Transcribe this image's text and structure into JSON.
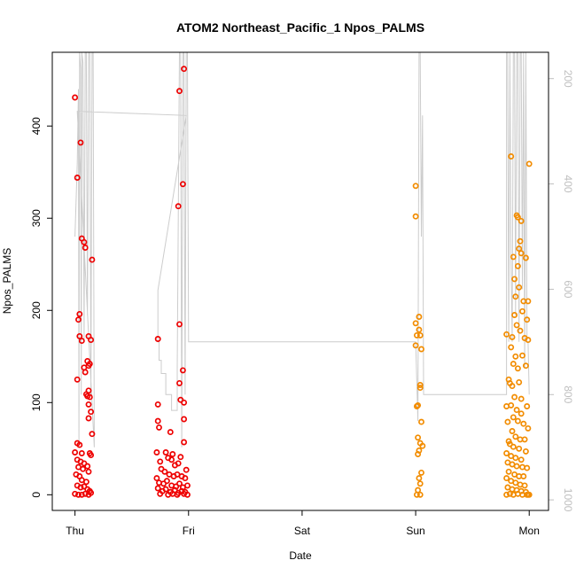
{
  "chart_data": {
    "type": "scatter",
    "title": "ATOM2 Northeast_Pacific_1 Npos_PALMS",
    "xlabel": "Date",
    "ylabel": "Npos_PALMS",
    "x_ticks": [
      "Thu",
      "Fri",
      "Sat",
      "Sun",
      "Mon"
    ],
    "x_range": [
      -0.2,
      4.17
    ],
    "ylim": [
      -17,
      480
    ],
    "y_ticks": [
      0,
      100,
      200,
      300,
      400
    ],
    "y2_ticks": [
      200,
      400,
      600,
      800,
      1000
    ],
    "y2_range": [
      150,
      1020
    ],
    "grid": false,
    "colors": {
      "red": "#ee0000",
      "orange": "#f28c00",
      "altitude": "#cccccc"
    },
    "series": [
      {
        "color": "red",
        "points": [
          [
            0.0,
            431
          ],
          [
            0.02,
            344
          ],
          [
            0.05,
            382
          ],
          [
            0.06,
            278
          ],
          [
            0.08,
            274
          ],
          [
            0.09,
            268
          ],
          [
            0.15,
            255
          ],
          [
            0.04,
            196
          ],
          [
            0.03,
            190
          ],
          [
            0.04,
            172
          ],
          [
            0.06,
            167
          ],
          [
            0.12,
            172
          ],
          [
            0.14,
            168
          ],
          [
            0.08,
            138
          ],
          [
            0.09,
            133
          ],
          [
            0.11,
            145
          ],
          [
            0.13,
            142
          ],
          [
            0.12,
            140
          ],
          [
            0.02,
            125
          ],
          [
            0.1,
            109
          ],
          [
            0.11,
            107
          ],
          [
            0.12,
            113
          ],
          [
            0.13,
            106
          ],
          [
            0.12,
            98
          ],
          [
            0.14,
            90
          ],
          [
            0.12,
            83
          ],
          [
            0.15,
            66
          ],
          [
            0.02,
            56
          ],
          [
            0.04,
            54
          ],
          [
            0.0,
            46
          ],
          [
            0.06,
            45
          ],
          [
            0.13,
            45
          ],
          [
            0.14,
            43
          ],
          [
            0.02,
            38
          ],
          [
            0.05,
            36
          ],
          [
            0.08,
            34
          ],
          [
            0.03,
            30
          ],
          [
            0.07,
            28
          ],
          [
            0.11,
            31
          ],
          [
            0.12,
            25
          ],
          [
            0.01,
            22
          ],
          [
            0.04,
            20
          ],
          [
            0.06,
            16
          ],
          [
            0.1,
            14
          ],
          [
            0.02,
            10
          ],
          [
            0.05,
            8
          ],
          [
            0.08,
            9
          ],
          [
            0.11,
            6
          ],
          [
            0.13,
            4
          ],
          [
            0.0,
            1
          ],
          [
            0.03,
            0
          ],
          [
            0.06,
            0
          ],
          [
            0.09,
            1
          ],
          [
            0.12,
            0
          ],
          [
            0.14,
            2
          ],
          [
            0.96,
            462
          ],
          [
            0.92,
            438
          ],
          [
            0.95,
            337
          ],
          [
            0.91,
            313
          ],
          [
            0.92,
            185
          ],
          [
            0.73,
            169
          ],
          [
            0.95,
            135
          ],
          [
            0.92,
            121
          ],
          [
            0.93,
            103
          ],
          [
            0.73,
            98
          ],
          [
            0.96,
            100
          ],
          [
            0.96,
            82
          ],
          [
            0.73,
            80
          ],
          [
            0.74,
            73
          ],
          [
            0.84,
            68
          ],
          [
            0.96,
            57
          ],
          [
            0.72,
            46
          ],
          [
            0.8,
            46
          ],
          [
            0.86,
            44
          ],
          [
            0.93,
            41
          ],
          [
            0.75,
            36
          ],
          [
            0.82,
            40
          ],
          [
            0.85,
            38
          ],
          [
            0.88,
            32
          ],
          [
            0.91,
            34
          ],
          [
            0.98,
            27
          ],
          [
            0.76,
            28
          ],
          [
            0.79,
            25
          ],
          [
            0.83,
            22
          ],
          [
            0.87,
            20
          ],
          [
            0.9,
            22
          ],
          [
            0.94,
            20
          ],
          [
            0.97,
            18
          ],
          [
            0.72,
            18
          ],
          [
            0.74,
            13
          ],
          [
            0.78,
            12
          ],
          [
            0.81,
            15
          ],
          [
            0.85,
            10
          ],
          [
            0.89,
            9
          ],
          [
            0.92,
            12
          ],
          [
            0.95,
            8
          ],
          [
            0.99,
            10
          ],
          [
            0.73,
            7
          ],
          [
            0.77,
            4
          ],
          [
            0.8,
            6
          ],
          [
            0.84,
            3
          ],
          [
            0.88,
            5
          ],
          [
            0.91,
            2
          ],
          [
            0.94,
            4
          ],
          [
            0.97,
            3
          ],
          [
            0.75,
            1
          ],
          [
            0.82,
            0
          ],
          [
            0.86,
            1
          ],
          [
            0.9,
            0
          ],
          [
            0.96,
            1
          ],
          [
            0.99,
            0
          ]
        ]
      },
      {
        "color": "orange",
        "points": [
          [
            3.0,
            335
          ],
          [
            3.0,
            302
          ],
          [
            3.03,
            193
          ],
          [
            3.0,
            186
          ],
          [
            3.03,
            179
          ],
          [
            3.01,
            173
          ],
          [
            3.04,
            173
          ],
          [
            3.0,
            162
          ],
          [
            3.05,
            158
          ],
          [
            3.04,
            119
          ],
          [
            3.04,
            116
          ],
          [
            3.02,
            97
          ],
          [
            3.01,
            96
          ],
          [
            3.05,
            79
          ],
          [
            3.02,
            62
          ],
          [
            3.04,
            56
          ],
          [
            3.06,
            53
          ],
          [
            3.03,
            48
          ],
          [
            3.02,
            44
          ],
          [
            3.05,
            24
          ],
          [
            3.03,
            18
          ],
          [
            3.04,
            12
          ],
          [
            3.02,
            5
          ],
          [
            3.04,
            0
          ],
          [
            3.01,
            0
          ],
          [
            3.84,
            367
          ],
          [
            4.0,
            359
          ],
          [
            3.89,
            303
          ],
          [
            3.9,
            301
          ],
          [
            3.93,
            297
          ],
          [
            3.92,
            275
          ],
          [
            3.91,
            267
          ],
          [
            3.93,
            262
          ],
          [
            3.97,
            257
          ],
          [
            3.86,
            258
          ],
          [
            3.9,
            248
          ],
          [
            3.87,
            234
          ],
          [
            3.91,
            225
          ],
          [
            3.88,
            215
          ],
          [
            3.95,
            210
          ],
          [
            3.99,
            210
          ],
          [
            3.94,
            199
          ],
          [
            3.87,
            195
          ],
          [
            3.98,
            190
          ],
          [
            3.89,
            184
          ],
          [
            3.92,
            178
          ],
          [
            3.8,
            174
          ],
          [
            3.96,
            170
          ],
          [
            3.85,
            171
          ],
          [
            3.99,
            168
          ],
          [
            3.84,
            160
          ],
          [
            3.88,
            150
          ],
          [
            3.94,
            151
          ],
          [
            3.97,
            140
          ],
          [
            3.86,
            142
          ],
          [
            3.9,
            137
          ],
          [
            3.82,
            125
          ],
          [
            3.83,
            121
          ],
          [
            3.91,
            122
          ],
          [
            3.85,
            118
          ],
          [
            3.87,
            106
          ],
          [
            3.93,
            104
          ],
          [
            3.98,
            96
          ],
          [
            3.8,
            96
          ],
          [
            3.84,
            97
          ],
          [
            3.89,
            92
          ],
          [
            3.93,
            88
          ],
          [
            3.86,
            84
          ],
          [
            3.9,
            80
          ],
          [
            3.81,
            79
          ],
          [
            3.95,
            77
          ],
          [
            3.99,
            72
          ],
          [
            3.85,
            69
          ],
          [
            3.88,
            63
          ],
          [
            3.92,
            60
          ],
          [
            3.96,
            60
          ],
          [
            3.82,
            58
          ],
          [
            3.83,
            55
          ],
          [
            3.86,
            52
          ],
          [
            3.91,
            50
          ],
          [
            3.97,
            47
          ],
          [
            3.8,
            45
          ],
          [
            3.84,
            42
          ],
          [
            3.88,
            40
          ],
          [
            3.93,
            38
          ],
          [
            3.81,
            35
          ],
          [
            3.85,
            33
          ],
          [
            3.89,
            31
          ],
          [
            3.94,
            30
          ],
          [
            3.98,
            29
          ],
          [
            3.82,
            25
          ],
          [
            3.87,
            22
          ],
          [
            3.91,
            20
          ],
          [
            3.95,
            20
          ],
          [
            3.8,
            18
          ],
          [
            3.84,
            15
          ],
          [
            3.88,
            13
          ],
          [
            3.92,
            11
          ],
          [
            3.96,
            10
          ],
          [
            3.81,
            8
          ],
          [
            3.85,
            6
          ],
          [
            3.89,
            5
          ],
          [
            3.93,
            4
          ],
          [
            3.97,
            3
          ],
          [
            3.83,
            1
          ],
          [
            3.86,
            0
          ],
          [
            3.9,
            1
          ],
          [
            3.94,
            0
          ],
          [
            3.98,
            0
          ],
          [
            4.0,
            0
          ],
          [
            3.99,
            0
          ],
          [
            3.8,
            0
          ]
        ]
      }
    ],
    "altitude_line": [
      [
        0.0,
        500
      ],
      [
        0.02,
        360
      ],
      [
        0.03,
        220
      ],
      [
        0.035,
        900
      ],
      [
        0.04,
        150
      ],
      [
        0.05,
        180
      ],
      [
        0.055,
        800
      ],
      [
        0.06,
        150
      ],
      [
        0.07,
        170
      ],
      [
        0.08,
        700
      ],
      [
        0.09,
        150
      ],
      [
        0.1,
        150
      ],
      [
        0.11,
        650
      ],
      [
        0.12,
        150
      ],
      [
        0.13,
        150
      ],
      [
        0.14,
        800
      ],
      [
        0.15,
        150
      ],
      [
        0.16,
        150
      ],
      [
        0.17,
        900
      ],
      [
        0.02,
        262
      ],
      [
        0.98,
        270
      ],
      [
        0.73,
        602
      ],
      [
        0.73,
        700
      ],
      [
        0.74,
        700
      ],
      [
        0.74,
        735
      ],
      [
        0.76,
        735
      ],
      [
        0.76,
        760
      ],
      [
        0.8,
        760
      ],
      [
        0.8,
        800
      ],
      [
        0.85,
        800
      ],
      [
        0.85,
        830
      ],
      [
        0.88,
        830
      ],
      [
        0.9,
        830
      ],
      [
        0.9,
        750
      ],
      [
        0.92,
        150
      ],
      [
        0.93,
        150
      ],
      [
        0.94,
        900
      ],
      [
        0.95,
        150
      ],
      [
        0.96,
        150
      ],
      [
        0.97,
        800
      ],
      [
        0.98,
        150
      ],
      [
        0.99,
        150
      ],
      [
        1.0,
        700
      ],
      [
        3.0,
        700
      ],
      [
        3.02,
        850
      ],
      [
        3.03,
        150
      ],
      [
        3.04,
        150
      ],
      [
        3.05,
        500
      ],
      [
        3.06,
        270
      ],
      [
        3.07,
        800
      ],
      [
        3.1,
        800
      ],
      [
        3.8,
        800
      ],
      [
        3.8,
        150
      ],
      [
        3.81,
        150
      ],
      [
        3.82,
        700
      ],
      [
        3.83,
        150
      ],
      [
        3.84,
        550
      ],
      [
        3.85,
        700
      ],
      [
        3.86,
        150
      ],
      [
        3.87,
        150
      ],
      [
        3.88,
        650
      ],
      [
        3.89,
        150
      ],
      [
        3.9,
        150
      ],
      [
        3.91,
        700
      ],
      [
        3.92,
        150
      ],
      [
        3.93,
        150
      ],
      [
        3.94,
        600
      ],
      [
        3.95,
        150
      ],
      [
        3.96,
        750
      ],
      [
        3.97,
        150
      ],
      [
        3.98,
        700
      ],
      [
        3.99,
        700
      ],
      [
        4.0,
        800
      ]
    ]
  }
}
